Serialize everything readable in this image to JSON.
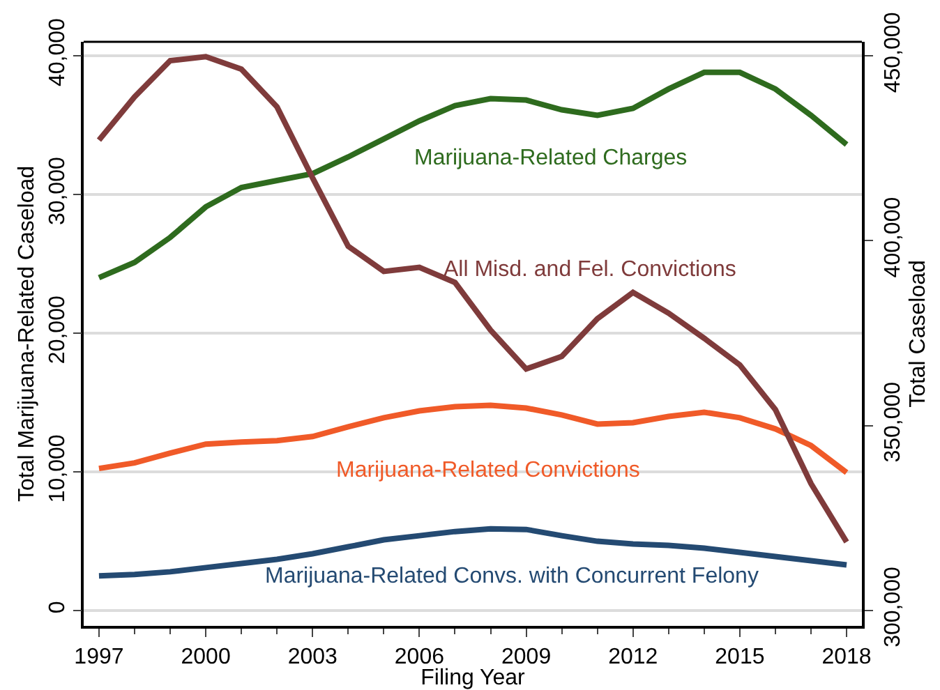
{
  "chart_data": {
    "type": "line",
    "xlabel": "Filing Year",
    "ylabel": "Total Marijuana-Related Caseload",
    "y2label": "Total Caseload",
    "x": [
      1997,
      1998,
      1999,
      2000,
      2001,
      2002,
      2003,
      2004,
      2005,
      2006,
      2007,
      2008,
      2009,
      2010,
      2011,
      2012,
      2013,
      2014,
      2015,
      2016,
      2017,
      2018
    ],
    "series": [
      {
        "name": "Marijuana-Related Charges",
        "color": "#2e6b1e",
        "values": [
          24000,
          25100,
          26900,
          29100,
          30500,
          31000,
          31500,
          32700,
          34000,
          35300,
          36400,
          36900,
          36800,
          36100,
          35700,
          36200,
          37600,
          38800,
          38800,
          37600,
          35700,
          33600
        ]
      },
      {
        "name": "All Misd. and Fel. Convictions",
        "color": "#7f3b3b",
        "axis": "y2",
        "values": [
          427200,
          438900,
          448700,
          449800,
          446400,
          436200,
          417000,
          398500,
          391700,
          392800,
          388700,
          375800,
          365300,
          368700,
          378900,
          386000,
          380400,
          373600,
          366400,
          354300,
          334300,
          318500
        ]
      },
      {
        "name": "Marijuana-Related Convictions",
        "color": "#f05a28",
        "values": [
          10250,
          10650,
          11350,
          12000,
          12150,
          12250,
          12550,
          13250,
          13900,
          14400,
          14700,
          14800,
          14600,
          14100,
          13450,
          13550,
          14000,
          14300,
          13900,
          13100,
          11900,
          9950
        ]
      },
      {
        "name": "Marijuana-Related Convs. with Concurrent Felony",
        "color": "#244a72",
        "values": [
          2500,
          2600,
          2800,
          3100,
          3400,
          3700,
          4100,
          4600,
          5100,
          5400,
          5700,
          5900,
          5850,
          5400,
          5000,
          4800,
          4700,
          4500,
          4200,
          3900,
          3600,
          3300
        ]
      }
    ],
    "xlim": [
      1996.57,
      2018.43
    ],
    "xticks": [
      1997,
      2000,
      2003,
      2006,
      2009,
      2012,
      2015,
      2018
    ],
    "ylim": [
      -1100,
      41000
    ],
    "yticks": [
      {
        "value": 0,
        "label": "0"
      },
      {
        "value": 10000,
        "label": "10,000"
      },
      {
        "value": 20000,
        "label": "20,000"
      },
      {
        "value": 30000,
        "label": "30,000"
      },
      {
        "value": 40000,
        "label": "40,000"
      }
    ],
    "y2lim": [
      295800,
      453800
    ],
    "y2ticks": [
      {
        "value": 300000,
        "label": "300,000"
      },
      {
        "value": 350000,
        "label": "350,000"
      },
      {
        "value": 400000,
        "label": "400,000"
      },
      {
        "value": 450000,
        "label": "450,000"
      }
    ],
    "grid": "y",
    "legend": false,
    "marker": "none",
    "line_style": "solid"
  }
}
